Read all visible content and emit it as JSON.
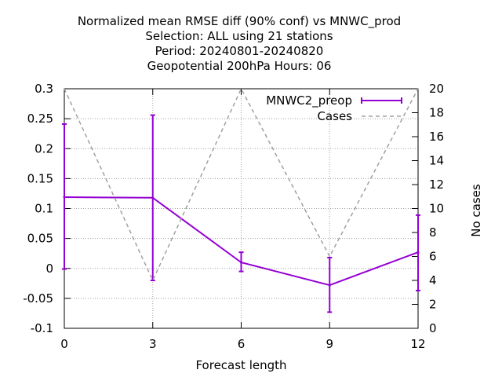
{
  "chart_data": {
    "type": "line",
    "title_lines": [
      "Normalized mean RMSE diff (90% conf) vs MNWC_prod",
      "Selection: ALL using    21 stations",
      "Period: 20240801-20240820",
      "Geopotential 200hPa   Hours:  06"
    ],
    "xlabel": "Forecast length",
    "ylabel": "",
    "y2label": "No cases",
    "x": [
      0,
      3,
      6,
      9,
      12
    ],
    "xlim": [
      0,
      12
    ],
    "ylim": [
      -0.1,
      0.3
    ],
    "y2lim": [
      0,
      20
    ],
    "xticks": [
      "0",
      "3",
      "6",
      "9",
      "12"
    ],
    "yticks": [
      "-0.1",
      "-0.05",
      "0",
      "0.05",
      "0.1",
      "0.15",
      "0.2",
      "0.25",
      "0.3"
    ],
    "y2ticks": [
      "0",
      "2",
      "4",
      "6",
      "8",
      "10",
      "12",
      "14",
      "16",
      "18",
      "20"
    ],
    "grid": true,
    "legend_position": "top-right",
    "series": [
      {
        "name": "MNWC2_preop",
        "axis": "y",
        "color": "#9400d3",
        "values": [
          0.119,
          0.118,
          0.01,
          -0.028,
          0.027
        ],
        "error_low": [
          -0.001,
          -0.02,
          -0.005,
          -0.073,
          -0.037
        ],
        "error_high": [
          0.241,
          0.256,
          0.027,
          0.018,
          0.089
        ]
      },
      {
        "name": "Cases",
        "axis": "y2",
        "color": "#a0a0a0",
        "dash": true,
        "values": [
          20,
          4,
          20,
          6,
          20
        ]
      }
    ]
  }
}
